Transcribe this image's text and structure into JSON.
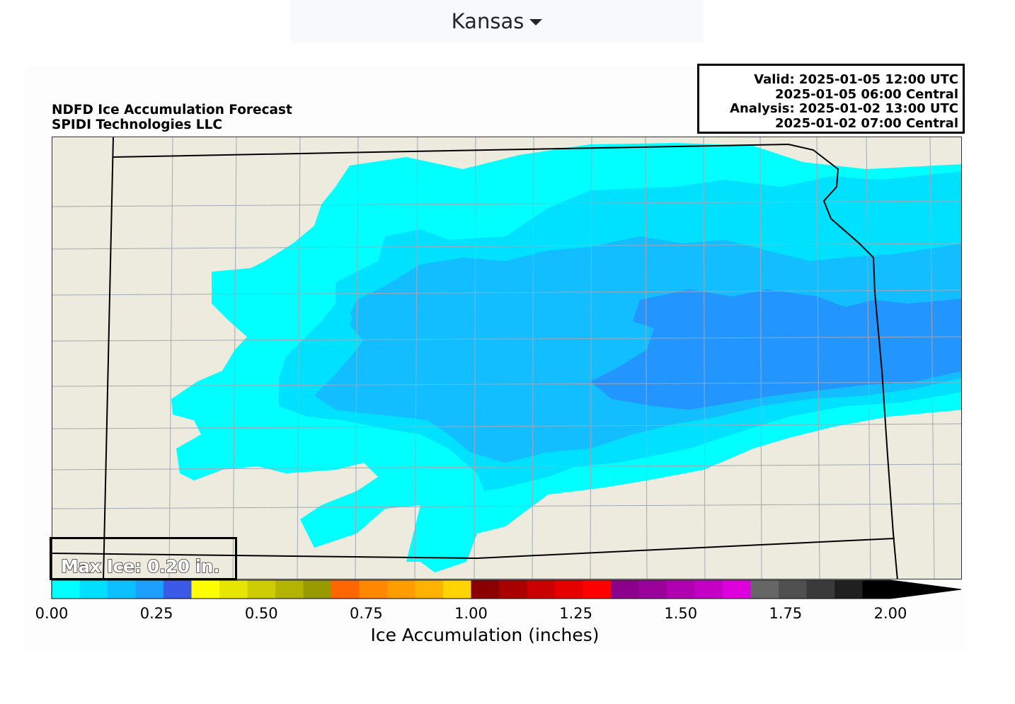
{
  "region_selector": {
    "label": "Kansas"
  },
  "figure": {
    "title_line1": "NDFD Ice Accumulation Forecast",
    "title_line2": "SPIDI Technologies LLC",
    "info": {
      "valid_utc": "Valid: 2025-01-05 12:00 UTC",
      "valid_central": "2025-01-05 06:00 Central",
      "analysis_utc": "Analysis: 2025-01-02 13:00 UTC",
      "analysis_central": "2025-01-02 07:00 Central"
    },
    "max_ice": "Max Ice: 0.20 in."
  },
  "colorbar": {
    "label": "Ice Accumulation (inches)",
    "ticks": [
      "0.00",
      "0.25",
      "0.50",
      "0.75",
      "1.00",
      "1.25",
      "1.50",
      "1.75",
      "2.00"
    ],
    "tick_values": [
      0,
      0.25,
      0.5,
      0.75,
      1.0,
      1.25,
      1.5,
      1.75,
      2.0
    ],
    "bin_colors": [
      "#00ffff",
      "#00dfff",
      "#0cbfff",
      "#1c9fff",
      "#3c5ae8",
      "#ffff00",
      "#e6e600",
      "#cccc00",
      "#b3b300",
      "#999900",
      "#ff6600",
      "#ff8800",
      "#ff9d00",
      "#ffb300",
      "#ffd400",
      "#8b0000",
      "#aa0000",
      "#c80000",
      "#e60000",
      "#ff0000",
      "#8b008b",
      "#9a009a",
      "#b000b0",
      "#c300c3",
      "#dd00dd",
      "#666666",
      "#505050",
      "#3a3a3a",
      "#202020",
      "#000000"
    ],
    "extend_color": "#000000"
  },
  "map_colors": {
    "background": "#ecebdd",
    "ice_0_05": "#00ffff",
    "ice_05_10": "#00e1ff",
    "ice_10_15": "#12beff",
    "ice_15_20": "#2295ff",
    "county_lines": "#a0a8b8",
    "state_lines": "#000000"
  }
}
